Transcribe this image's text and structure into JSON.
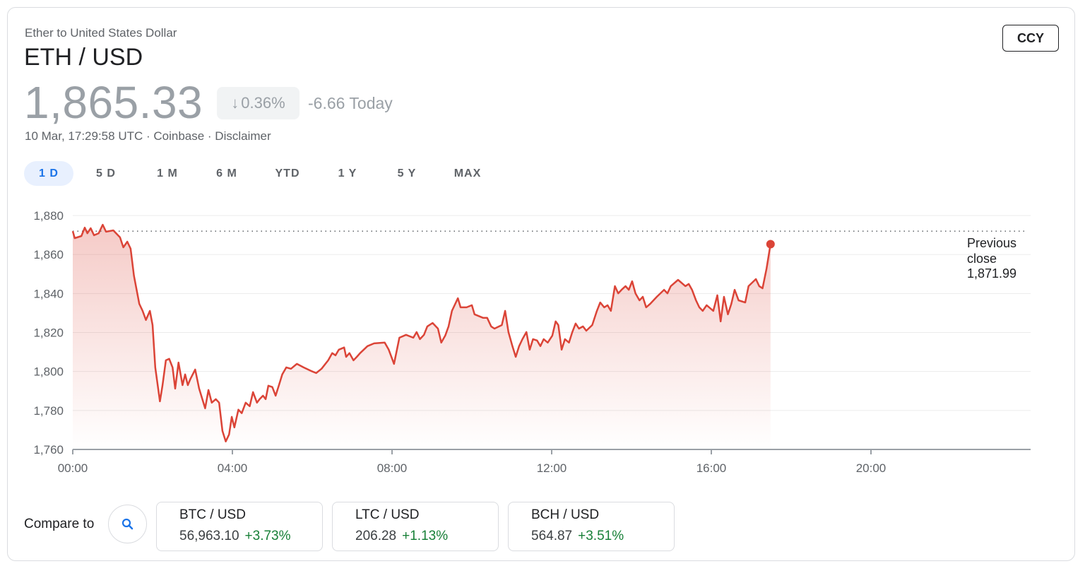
{
  "header": {
    "subtitle": "Ether to United States Dollar",
    "title": "ETH / USD",
    "price": "1,865.33",
    "change_pct": "0.36%",
    "change_direction": "down",
    "change_today": "-6.66 Today",
    "meta": "10 Mar, 17:29:58 UTC · Coinbase · Disclaimer",
    "ccy_button": "CCY"
  },
  "ranges": [
    {
      "label": "1 D",
      "active": true
    },
    {
      "label": "5 D"
    },
    {
      "label": "1 M"
    },
    {
      "label": "6 M"
    },
    {
      "label": "YTD"
    },
    {
      "label": "1 Y"
    },
    {
      "label": "5 Y"
    },
    {
      "label": "MAX"
    }
  ],
  "colors": {
    "line": "#db4437",
    "accent": "#1a73e8",
    "positive": "#188038"
  },
  "chart_data": {
    "type": "area",
    "xlim": [
      "00:00",
      "24:00"
    ],
    "ylim": [
      1760,
      1880
    ],
    "x_ticks": [
      "00:00",
      "04:00",
      "08:00",
      "12:00",
      "16:00",
      "20:00"
    ],
    "y_ticks": [
      "1,760",
      "1,780",
      "1,800",
      "1,820",
      "1,840",
      "1,860",
      "1,880"
    ],
    "grid": true,
    "previous_close": {
      "label_1": "Previous",
      "label_2": "close",
      "value_label": "1,871.99",
      "value": 1871.99
    },
    "points": [
      [
        "00:00",
        1872.0
      ],
      [
        "00:03",
        1868.4
      ],
      [
        "00:13",
        1869.5
      ],
      [
        "00:18",
        1873.8
      ],
      [
        "00:22",
        1870.9
      ],
      [
        "00:27",
        1873.5
      ],
      [
        "00:32",
        1869.9
      ],
      [
        "00:39",
        1870.9
      ],
      [
        "00:45",
        1875.3
      ],
      [
        "00:50",
        1871.7
      ],
      [
        "01:01",
        1872.4
      ],
      [
        "01:11",
        1868.8
      ],
      [
        "01:16",
        1863.7
      ],
      [
        "01:22",
        1866.6
      ],
      [
        "01:27",
        1863.0
      ],
      [
        "01:32",
        1849.2
      ],
      [
        "01:40",
        1834.7
      ],
      [
        "01:45",
        1831.1
      ],
      [
        "01:50",
        1826.4
      ],
      [
        "01:56",
        1831.1
      ],
      [
        "02:00",
        1823.8
      ],
      [
        "02:04",
        1802.1
      ],
      [
        "02:11",
        1784.7
      ],
      [
        "02:15",
        1793.0
      ],
      [
        "02:20",
        1805.7
      ],
      [
        "02:25",
        1806.5
      ],
      [
        "02:30",
        1802.1
      ],
      [
        "02:34",
        1791.2
      ],
      [
        "02:39",
        1804.6
      ],
      [
        "02:45",
        1793.0
      ],
      [
        "02:49",
        1798.5
      ],
      [
        "02:53",
        1793.0
      ],
      [
        "02:57",
        1796.3
      ],
      [
        "03:04",
        1801.0
      ],
      [
        "03:10",
        1791.2
      ],
      [
        "03:19",
        1781.1
      ],
      [
        "03:24",
        1790.5
      ],
      [
        "03:29",
        1784.0
      ],
      [
        "03:35",
        1785.8
      ],
      [
        "03:40",
        1784.0
      ],
      [
        "03:45",
        1769.5
      ],
      [
        "03:50",
        1764.1
      ],
      [
        "03:55",
        1767.7
      ],
      [
        "03:59",
        1776.7
      ],
      [
        "04:03",
        1771.3
      ],
      [
        "04:09",
        1780.4
      ],
      [
        "04:14",
        1778.6
      ],
      [
        "04:20",
        1784.0
      ],
      [
        "04:26",
        1782.2
      ],
      [
        "04:31",
        1789.4
      ],
      [
        "04:37",
        1784.0
      ],
      [
        "04:41",
        1785.8
      ],
      [
        "04:46",
        1787.6
      ],
      [
        "04:50",
        1785.8
      ],
      [
        "04:54",
        1792.7
      ],
      [
        "05:00",
        1792.0
      ],
      [
        "05:05",
        1787.6
      ],
      [
        "05:10",
        1793.0
      ],
      [
        "05:15",
        1798.5
      ],
      [
        "05:21",
        1802.1
      ],
      [
        "05:28",
        1801.4
      ],
      [
        "05:37",
        1803.9
      ],
      [
        "05:47",
        1802.1
      ],
      [
        "05:58",
        1800.3
      ],
      [
        "06:06",
        1799.2
      ],
      [
        "06:14",
        1801.4
      ],
      [
        "06:24",
        1805.7
      ],
      [
        "06:30",
        1809.4
      ],
      [
        "06:35",
        1808.3
      ],
      [
        "06:40",
        1811.2
      ],
      [
        "06:48",
        1812.3
      ],
      [
        "06:51",
        1807.5
      ],
      [
        "06:56",
        1809.4
      ],
      [
        "07:02",
        1805.7
      ],
      [
        "07:07",
        1807.5
      ],
      [
        "07:12",
        1809.4
      ],
      [
        "07:23",
        1813.0
      ],
      [
        "07:33",
        1814.4
      ],
      [
        "07:49",
        1814.8
      ],
      [
        "07:55",
        1811.2
      ],
      [
        "08:03",
        1803.9
      ],
      [
        "08:11",
        1817.3
      ],
      [
        "08:21",
        1818.8
      ],
      [
        "08:32",
        1817.3
      ],
      [
        "08:37",
        1820.2
      ],
      [
        "08:42",
        1816.6
      ],
      [
        "08:48",
        1818.8
      ],
      [
        "08:53",
        1823.1
      ],
      [
        "09:01",
        1824.9
      ],
      [
        "09:09",
        1822.0
      ],
      [
        "09:14",
        1814.8
      ],
      [
        "09:20",
        1818.4
      ],
      [
        "09:25",
        1823.1
      ],
      [
        "09:30",
        1831.1
      ],
      [
        "09:39",
        1837.6
      ],
      [
        "09:43",
        1832.9
      ],
      [
        "09:52",
        1832.9
      ],
      [
        "10:00",
        1834.0
      ],
      [
        "10:04",
        1829.3
      ],
      [
        "10:17",
        1827.5
      ],
      [
        "10:23",
        1827.5
      ],
      [
        "10:29",
        1823.1
      ],
      [
        "10:34",
        1822.0
      ],
      [
        "10:45",
        1823.8
      ],
      [
        "10:50",
        1831.1
      ],
      [
        "10:55",
        1820.2
      ],
      [
        "11:01",
        1813.0
      ],
      [
        "11:06",
        1807.5
      ],
      [
        "11:11",
        1813.0
      ],
      [
        "11:16",
        1816.6
      ],
      [
        "11:22",
        1820.2
      ],
      [
        "11:27",
        1811.2
      ],
      [
        "11:32",
        1816.6
      ],
      [
        "11:38",
        1815.9
      ],
      [
        "11:43",
        1813.0
      ],
      [
        "11:48",
        1816.6
      ],
      [
        "11:54",
        1814.8
      ],
      [
        "12:01",
        1818.4
      ],
      [
        "12:06",
        1825.7
      ],
      [
        "12:10",
        1823.8
      ],
      [
        "12:15",
        1811.2
      ],
      [
        "12:20",
        1816.6
      ],
      [
        "12:26",
        1814.8
      ],
      [
        "12:31",
        1820.2
      ],
      [
        "12:36",
        1824.6
      ],
      [
        "12:41",
        1822.0
      ],
      [
        "12:47",
        1823.1
      ],
      [
        "12:52",
        1820.9
      ],
      [
        "13:01",
        1823.8
      ],
      [
        "13:08",
        1831.1
      ],
      [
        "13:13",
        1835.4
      ],
      [
        "13:19",
        1832.9
      ],
      [
        "13:24",
        1834.0
      ],
      [
        "13:29",
        1831.1
      ],
      [
        "13:35",
        1843.8
      ],
      [
        "13:40",
        1840.1
      ],
      [
        "13:45",
        1841.9
      ],
      [
        "13:51",
        1843.8
      ],
      [
        "13:56",
        1841.9
      ],
      [
        "14:01",
        1846.3
      ],
      [
        "14:06",
        1840.1
      ],
      [
        "14:12",
        1836.5
      ],
      [
        "14:17",
        1838.3
      ],
      [
        "14:22",
        1832.9
      ],
      [
        "14:28",
        1834.7
      ],
      [
        "14:38",
        1838.3
      ],
      [
        "14:49",
        1841.9
      ],
      [
        "14:54",
        1840.1
      ],
      [
        "14:59",
        1843.8
      ],
      [
        "15:10",
        1847.0
      ],
      [
        "15:21",
        1843.8
      ],
      [
        "15:26",
        1844.9
      ],
      [
        "15:31",
        1841.9
      ],
      [
        "15:37",
        1836.5
      ],
      [
        "15:42",
        1832.9
      ],
      [
        "15:47",
        1831.1
      ],
      [
        "15:53",
        1834.0
      ],
      [
        "16:03",
        1831.1
      ],
      [
        "16:09",
        1839.1
      ],
      [
        "16:14",
        1825.7
      ],
      [
        "16:19",
        1838.3
      ],
      [
        "16:25",
        1829.3
      ],
      [
        "16:30",
        1834.7
      ],
      [
        "16:35",
        1841.9
      ],
      [
        "16:41",
        1836.5
      ],
      [
        "16:51",
        1835.4
      ],
      [
        "16:56",
        1843.8
      ],
      [
        "17:07",
        1847.4
      ],
      [
        "17:12",
        1843.8
      ],
      [
        "17:17",
        1842.7
      ],
      [
        "17:23",
        1852.8
      ],
      [
        "17:29",
        1865.33
      ]
    ]
  },
  "compare": {
    "label": "Compare to",
    "items": [
      {
        "name": "BTC / USD",
        "value": "56,963.10",
        "change": "+3.73%"
      },
      {
        "name": "LTC / USD",
        "value": "206.28",
        "change": "+1.13%"
      },
      {
        "name": "BCH / USD",
        "value": "564.87",
        "change": "+3.51%"
      }
    ]
  }
}
